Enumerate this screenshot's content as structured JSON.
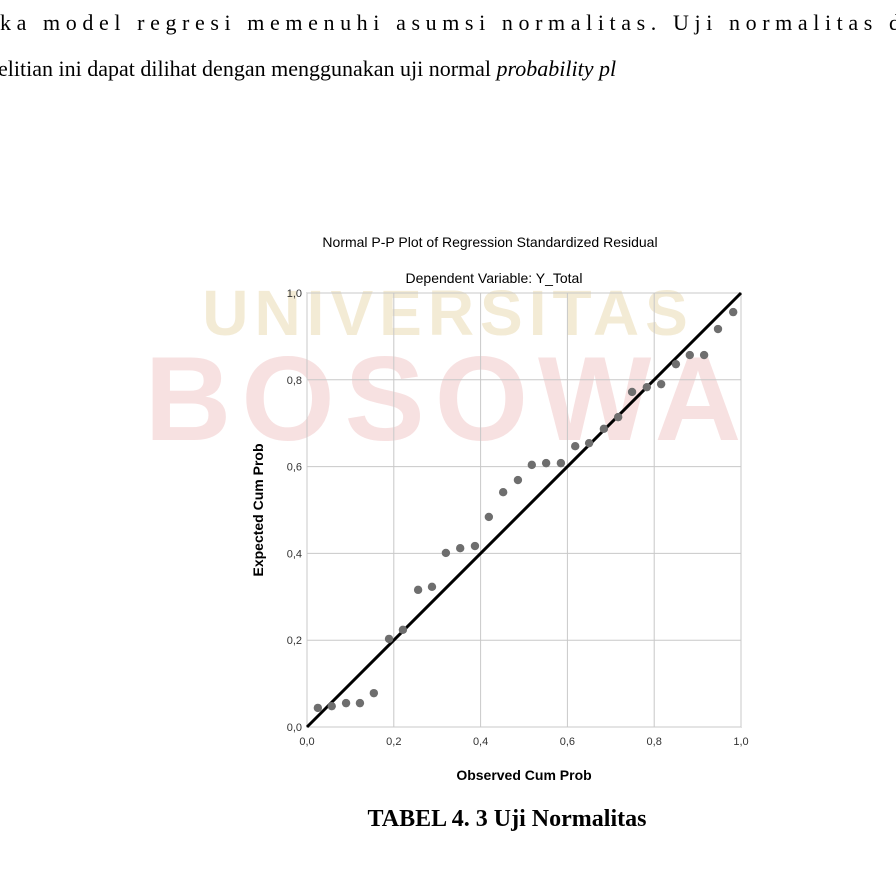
{
  "watermark": {
    "top": "UNIVERSITAS",
    "main": "BOSOWA"
  },
  "body_text": {
    "line1": "ka model regresi memenuhi asumsi normalitas. Uji normalitas d",
    "line2": "elitian ini dapat dilihat dengan menggunakan uji normal ",
    "line2_italic": "probability pl"
  },
  "chart_data": {
    "type": "scatter",
    "title": "Normal P-P Plot of Regression Standardized Residual",
    "subtitle": "Dependent Variable: Y_Total",
    "x_label": "Observed Cum Prob",
    "y_label": "Expected Cum Prob",
    "color": "#6e6e6e",
    "reference_line": true,
    "grid": true,
    "xlim": [
      0,
      1
    ],
    "ylim": [
      0,
      1
    ],
    "xticks": [
      {
        "value": 0,
        "label": "0,0"
      },
      {
        "value": 0.2,
        "label": "0,2"
      },
      {
        "value": 0.4,
        "label": "0,4"
      },
      {
        "value": 0.6,
        "label": "0,6"
      },
      {
        "value": 0.8,
        "label": "0,8"
      },
      {
        "value": 1,
        "label": "1,0"
      }
    ],
    "yticks": [
      {
        "value": 0,
        "label": "0,0"
      },
      {
        "value": 0.2,
        "label": "0,2"
      },
      {
        "value": 0.4,
        "label": "0,4"
      },
      {
        "value": 0.6,
        "label": "0,6"
      },
      {
        "value": 0.8,
        "label": "0,8"
      },
      {
        "value": 1,
        "label": "1,0"
      }
    ],
    "x": [
      0.025,
      0.057,
      0.09,
      0.122,
      0.154,
      0.189,
      0.221,
      0.256,
      0.288,
      0.32,
      0.353,
      0.387,
      0.419,
      0.452,
      0.486,
      0.518,
      0.551,
      0.585,
      0.618,
      0.65,
      0.684,
      0.717,
      0.749,
      0.783,
      0.816,
      0.85,
      0.882,
      0.915,
      0.947,
      0.982
    ],
    "values": [
      0.044,
      0.048,
      0.055,
      0.055,
      0.078,
      0.203,
      0.224,
      0.316,
      0.323,
      0.401,
      0.412,
      0.417,
      0.484,
      0.541,
      0.569,
      0.604,
      0.608,
      0.608,
      0.647,
      0.654,
      0.687,
      0.714,
      0.772,
      0.783,
      0.79,
      0.836,
      0.857,
      0.857,
      0.917,
      0.956
    ]
  },
  "caption": "TABEL 4. 3 Uji Normalitas"
}
